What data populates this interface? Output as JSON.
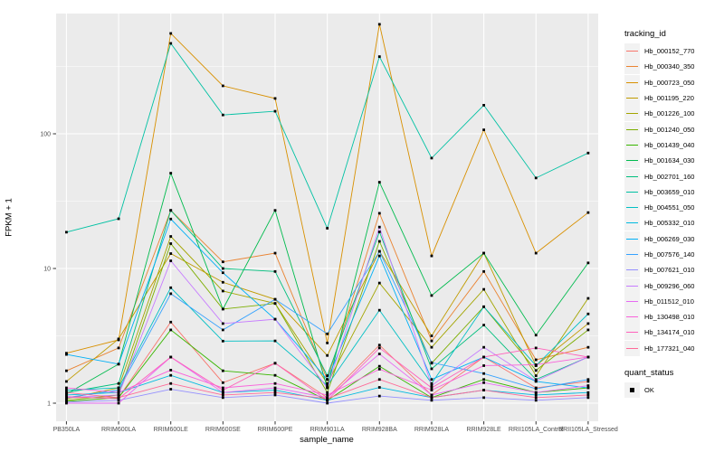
{
  "figure": {
    "xlabel": "sample_name",
    "ylabel": "FPKM + 1"
  },
  "legend": {
    "title": "tracking_id",
    "quant_title": "quant_status",
    "quant_items": [
      {
        "label": "OK",
        "marker": "filled-square"
      }
    ]
  },
  "style": {
    "panel_bg": "#EBEBEB",
    "grid_color": "#FFFFFF",
    "tick_color": "#333333",
    "tick_label_color": "#4D4D4D",
    "point_color": "#000000",
    "legend_key_bg": "#F2F2F2"
  },
  "chart_data": {
    "type": "line",
    "yscale": "log10",
    "title": "",
    "xlabel": "sample_name",
    "ylabel": "FPKM + 1",
    "ylim": [
      1,
      780
    ],
    "grid": "on",
    "legend_position": "right",
    "point_shape": "filled-square",
    "point_color": "#000000",
    "y_tick_values": [
      100,
      10,
      1
    ],
    "y_tick_labels": [
      "100",
      "10",
      "1"
    ],
    "y_minor_gridlines": [
      3.162,
      31.62,
      316.2
    ],
    "x_categories": [
      "PB350LA",
      "RRIM600LA",
      "RRIM600LE",
      "RRIM600SE",
      "RRIM600PE",
      "RRIM901LA",
      "RRIM928BA",
      "RRIM928LA",
      "RRIM928LE",
      "RRII105LA_Control",
      "RRII105LA_Stressed"
    ],
    "series": [
      {
        "name": "Hb_000152_770",
        "color": "#F8766D",
        "values": [
          1.1,
          1.1,
          4.0,
          1.42,
          1.98,
          1.1,
          2.7,
          1.15,
          2.2,
          1.3,
          1.45
        ]
      },
      {
        "name": "Hb_000340_350",
        "color": "#EA8331",
        "values": [
          1.74,
          2.57,
          27,
          11.2,
          13,
          1.5,
          25.7,
          2.9,
          9.5,
          2.1,
          2.6
        ]
      },
      {
        "name": "Hb_000723_050",
        "color": "#D89000",
        "values": [
          2.35,
          2.95,
          556,
          227,
          183,
          2.8,
          650,
          12.4,
          107,
          13,
          26
        ]
      },
      {
        "name": "Hb_001195_220",
        "color": "#C09B00",
        "values": [
          1.45,
          3.0,
          12.9,
          7.9,
          5.9,
          2.26,
          13.4,
          3.16,
          13,
          1.9,
          3.9
        ]
      },
      {
        "name": "Hb_001226_100",
        "color": "#A3A500",
        "values": [
          1.08,
          1.3,
          17.3,
          6.8,
          5.5,
          1.4,
          7.8,
          2.6,
          7.0,
          1.6,
          6.0
        ]
      },
      {
        "name": "Hb_001240_050",
        "color": "#7CAE00",
        "values": [
          1.05,
          1.15,
          15.3,
          5.0,
          5.5,
          1.2,
          15.9,
          1.98,
          5.2,
          1.75,
          3.5
        ]
      },
      {
        "name": "Hb_001439_040",
        "color": "#39B600",
        "values": [
          1.03,
          1.1,
          3.5,
          1.74,
          1.61,
          1.05,
          1.88,
          1.1,
          1.5,
          1.2,
          1.3
        ]
      },
      {
        "name": "Hb_001634_030",
        "color": "#00BB4E",
        "values": [
          1.17,
          1.95,
          51,
          5.0,
          27,
          1.3,
          43.7,
          6.3,
          13,
          3.2,
          11
        ]
      },
      {
        "name": "Hb_002701_160",
        "color": "#00BF7D",
        "values": [
          1.2,
          1.4,
          27,
          10,
          9.5,
          1.6,
          18.7,
          1.8,
          3.8,
          1.5,
          2.2
        ]
      },
      {
        "name": "Hb_003659_010",
        "color": "#00C1A3",
        "values": [
          18.6,
          23.4,
          469,
          138,
          147,
          19.9,
          374,
          66,
          163,
          47,
          72
        ]
      },
      {
        "name": "Hb_004551_050",
        "color": "#00BFC4",
        "values": [
          1.25,
          1.3,
          7.2,
          2.89,
          2.9,
          1.35,
          4.9,
          1.4,
          5.2,
          1.9,
          4.6
        ]
      },
      {
        "name": "Hb_005332_010",
        "color": "#00BAE0",
        "values": [
          1.15,
          1.2,
          1.61,
          1.2,
          1.25,
          1.05,
          1.31,
          1.1,
          1.25,
          1.15,
          1.2
        ]
      },
      {
        "name": "Hb_006269_030",
        "color": "#00B0F6",
        "values": [
          2.3,
          1.95,
          23.3,
          9.3,
          4.2,
          1.5,
          12.4,
          1.5,
          2.2,
          1.45,
          1.3
        ]
      },
      {
        "name": "Hb_007576_140",
        "color": "#35A2FF",
        "values": [
          1.1,
          1.25,
          6.5,
          3.5,
          5.9,
          3.27,
          13.4,
          2.0,
          1.66,
          1.28,
          1.5
        ]
      },
      {
        "name": "Hb_007621_010",
        "color": "#9590FF",
        "values": [
          1.02,
          1.05,
          1.27,
          1.1,
          1.15,
          1.0,
          1.13,
          1.05,
          1.1,
          1.05,
          1.1
        ]
      },
      {
        "name": "Hb_009296_060",
        "color": "#C77CFF",
        "values": [
          1.1,
          1.15,
          11.4,
          3.9,
          4.2,
          1.3,
          20.3,
          1.35,
          2.6,
          1.46,
          2.2
        ]
      },
      {
        "name": "Hb_011512_010",
        "color": "#E76BF3",
        "values": [
          1.0,
          1.0,
          2.2,
          1.2,
          1.3,
          1.1,
          2.32,
          1.15,
          1.42,
          1.2,
          1.35
        ]
      },
      {
        "name": "Hb_130498_010",
        "color": "#FA62DB",
        "values": [
          1.3,
          1.2,
          1.76,
          1.3,
          1.4,
          1.15,
          1.79,
          1.25,
          1.9,
          1.93,
          2.2
        ]
      },
      {
        "name": "Hb_134174_010",
        "color": "#FF62BC",
        "values": [
          1.12,
          1.08,
          2.2,
          1.25,
          1.98,
          1.05,
          2.57,
          1.3,
          2.2,
          2.57,
          2.2
        ]
      },
      {
        "name": "Hb_177321_040",
        "color": "#FF6A98",
        "values": [
          1.2,
          1.1,
          1.4,
          1.15,
          1.2,
          1.08,
          1.5,
          1.1,
          1.25,
          1.1,
          1.15
        ]
      }
    ],
    "quant_status": "OK"
  }
}
